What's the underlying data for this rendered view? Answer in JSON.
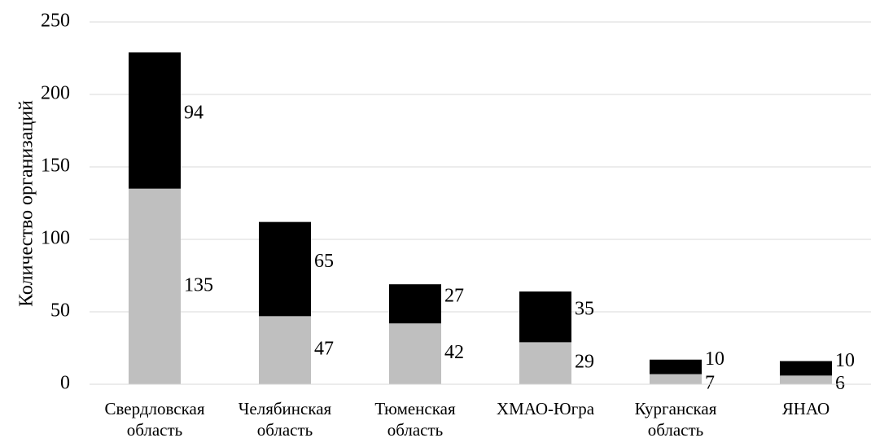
{
  "chart_data": {
    "type": "stacked_bar",
    "ylabel": "Количество организаций",
    "categories": [
      "Свердловская область",
      "Челябинская область",
      "Тюменская область",
      "ХМАО-Югра",
      "Курганская область",
      "ЯНАО"
    ],
    "series": [
      {
        "color": "#bfbfbf",
        "values": [
          135,
          47,
          42,
          29,
          7,
          6
        ]
      },
      {
        "color": "#000000",
        "values": [
          94,
          65,
          27,
          35,
          10,
          10
        ]
      }
    ],
    "ylim": [
      0,
      250
    ],
    "yticks": [
      0,
      50,
      100,
      150,
      200,
      250
    ],
    "grid": true
  }
}
